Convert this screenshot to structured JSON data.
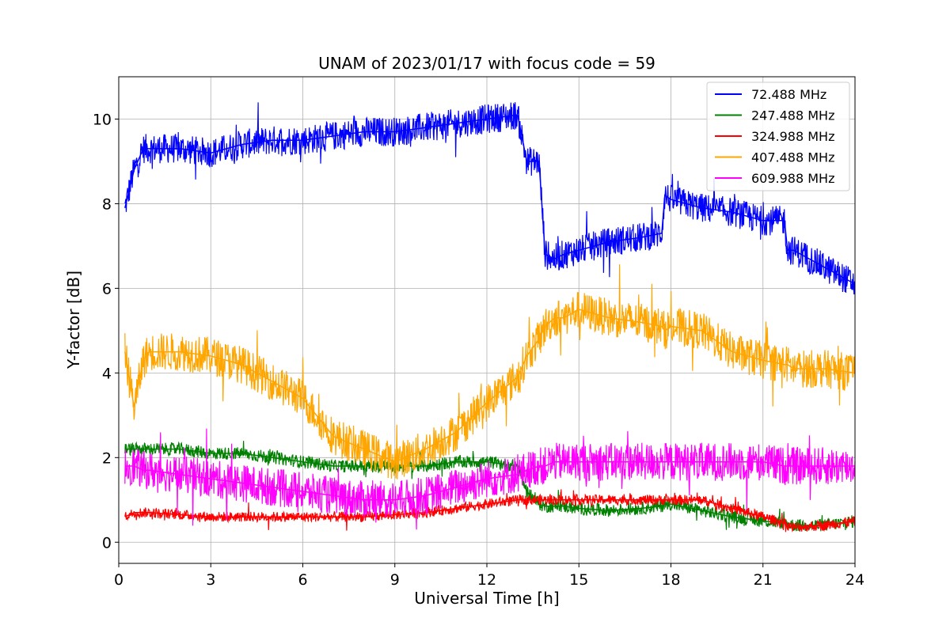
{
  "chart_data": {
    "type": "line",
    "title": "UNAM of 2023/01/17 with focus code = 59",
    "xlabel": "Universal Time [h]",
    "ylabel": "Y-factor [dB]",
    "xlim": [
      0,
      24
    ],
    "ylim": [
      -0.5,
      11
    ],
    "xticks": [
      0,
      3,
      6,
      9,
      12,
      15,
      18,
      21,
      24
    ],
    "yticks": [
      0,
      2,
      4,
      6,
      8,
      10
    ],
    "xtick_labels": [
      "0",
      "3",
      "6",
      "9",
      "12",
      "15",
      "18",
      "21",
      "24"
    ],
    "ytick_labels": [
      "0",
      "2",
      "4",
      "6",
      "8",
      "10"
    ],
    "grid": true,
    "legend_position": "top-right",
    "x": [
      0.2,
      0.5,
      0.8,
      1,
      2,
      3,
      4,
      5,
      6,
      7,
      8,
      9,
      10,
      11,
      12,
      13,
      13.3,
      13.7,
      13.9,
      14.2,
      14.5,
      15,
      16,
      17,
      17.7,
      17.8,
      18,
      19,
      20,
      21,
      21.7,
      21.8,
      22,
      23,
      24
    ],
    "series": [
      {
        "name": "  72.488 MHz",
        "color": "#0000ff",
        "noise": 0.35,
        "values": [
          7.9,
          8.8,
          9.3,
          9.3,
          9.3,
          9.2,
          9.4,
          9.5,
          9.5,
          9.6,
          9.7,
          9.7,
          9.8,
          9.9,
          10.0,
          10.1,
          9.0,
          9.0,
          6.8,
          6.7,
          6.8,
          6.9,
          7.1,
          7.2,
          7.3,
          8.2,
          8.1,
          7.9,
          7.8,
          7.6,
          7.6,
          6.9,
          6.9,
          6.5,
          6.1
        ]
      },
      {
        "name": "247.488 MHz",
        "color": "#008000",
        "noise": 0.15,
        "values": [
          2.2,
          2.2,
          2.2,
          2.2,
          2.2,
          2.1,
          2.1,
          2.0,
          1.9,
          1.8,
          1.8,
          1.8,
          1.8,
          1.9,
          1.9,
          1.8,
          1.2,
          0.9,
          0.85,
          0.85,
          0.85,
          0.8,
          0.75,
          0.8,
          0.85,
          0.9,
          0.9,
          0.75,
          0.6,
          0.5,
          0.45,
          0.45,
          0.4,
          0.4,
          0.5
        ]
      },
      {
        "name": "324.988 MHz",
        "color": "#ff0000",
        "noise": 0.12,
        "values": [
          0.6,
          0.7,
          0.7,
          0.7,
          0.65,
          0.6,
          0.6,
          0.6,
          0.6,
          0.6,
          0.6,
          0.65,
          0.7,
          0.8,
          0.9,
          1.0,
          1.0,
          1.0,
          1.0,
          1.0,
          1.0,
          1.0,
          1.0,
          1.0,
          1.0,
          1.0,
          1.0,
          1.0,
          0.8,
          0.6,
          0.45,
          0.4,
          0.35,
          0.4,
          0.5
        ]
      },
      {
        "name": "407.488 MHz",
        "color": "#ffa500",
        "noise": 0.45,
        "values": [
          4.5,
          3.2,
          4.3,
          4.5,
          4.5,
          4.4,
          4.2,
          3.8,
          3.4,
          2.5,
          2.2,
          1.9,
          2.2,
          2.6,
          3.3,
          3.9,
          4.4,
          4.8,
          5.1,
          5.3,
          5.3,
          5.5,
          5.3,
          5.2,
          5.1,
          5.0,
          5.1,
          5.0,
          4.5,
          4.3,
          4.2,
          4.2,
          4.1,
          4.1,
          4.0
        ]
      },
      {
        "name": "609.988 MHz",
        "color": "#ff00ff",
        "noise": 0.45,
        "values": [
          1.8,
          1.8,
          1.7,
          1.7,
          1.6,
          1.5,
          1.4,
          1.3,
          1.2,
          1.1,
          1.0,
          1.0,
          1.1,
          1.3,
          1.5,
          1.6,
          1.7,
          1.8,
          1.8,
          1.9,
          1.9,
          1.9,
          1.9,
          1.9,
          1.9,
          1.9,
          1.9,
          1.9,
          1.9,
          1.9,
          1.8,
          1.8,
          1.8,
          1.8,
          1.8
        ]
      }
    ]
  }
}
